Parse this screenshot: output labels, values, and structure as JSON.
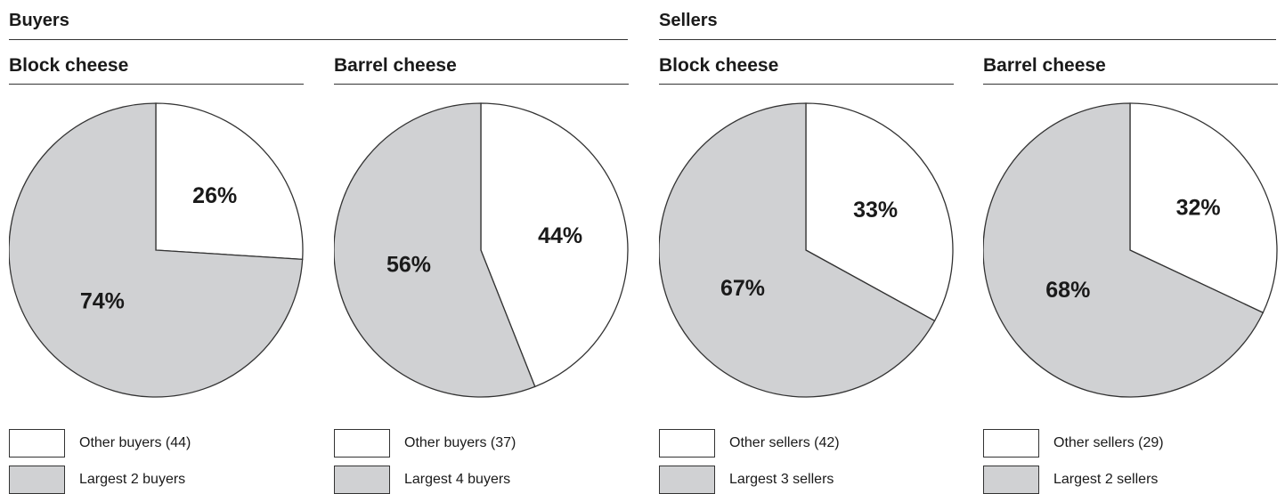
{
  "groups": [
    {
      "title": "Buyers"
    },
    {
      "title": "Sellers"
    }
  ],
  "colors": {
    "other": "#ffffff",
    "largest": "#d0d1d3",
    "stroke": "#333333"
  },
  "chart_data": [
    {
      "type": "pie",
      "group": "Buyers",
      "title": "Block cheese",
      "slices": [
        {
          "label": "Other buyers (44)",
          "value": 26,
          "display": "26%",
          "color": "#ffffff"
        },
        {
          "label": "Largest 2 buyers",
          "value": 74,
          "display": "74%",
          "color": "#d0d1d3"
        }
      ]
    },
    {
      "type": "pie",
      "group": "Buyers",
      "title": "Barrel cheese",
      "slices": [
        {
          "label": "Other buyers (37)",
          "value": 44,
          "display": "44%",
          "color": "#ffffff"
        },
        {
          "label": "Largest 4 buyers",
          "value": 56,
          "display": "56%",
          "color": "#d0d1d3"
        }
      ]
    },
    {
      "type": "pie",
      "group": "Sellers",
      "title": "Block cheese",
      "slices": [
        {
          "label": "Other sellers (42)",
          "value": 33,
          "display": "33%",
          "color": "#ffffff"
        },
        {
          "label": "Largest 3 sellers",
          "value": 67,
          "display": "67%",
          "color": "#d0d1d3"
        }
      ]
    },
    {
      "type": "pie",
      "group": "Sellers",
      "title": "Barrel cheese",
      "slices": [
        {
          "label": "Other sellers (29)",
          "value": 32,
          "display": "32%",
          "color": "#ffffff"
        },
        {
          "label": "Largest 2 sellers",
          "value": 68,
          "display": "68%",
          "color": "#d0d1d3"
        }
      ]
    }
  ]
}
